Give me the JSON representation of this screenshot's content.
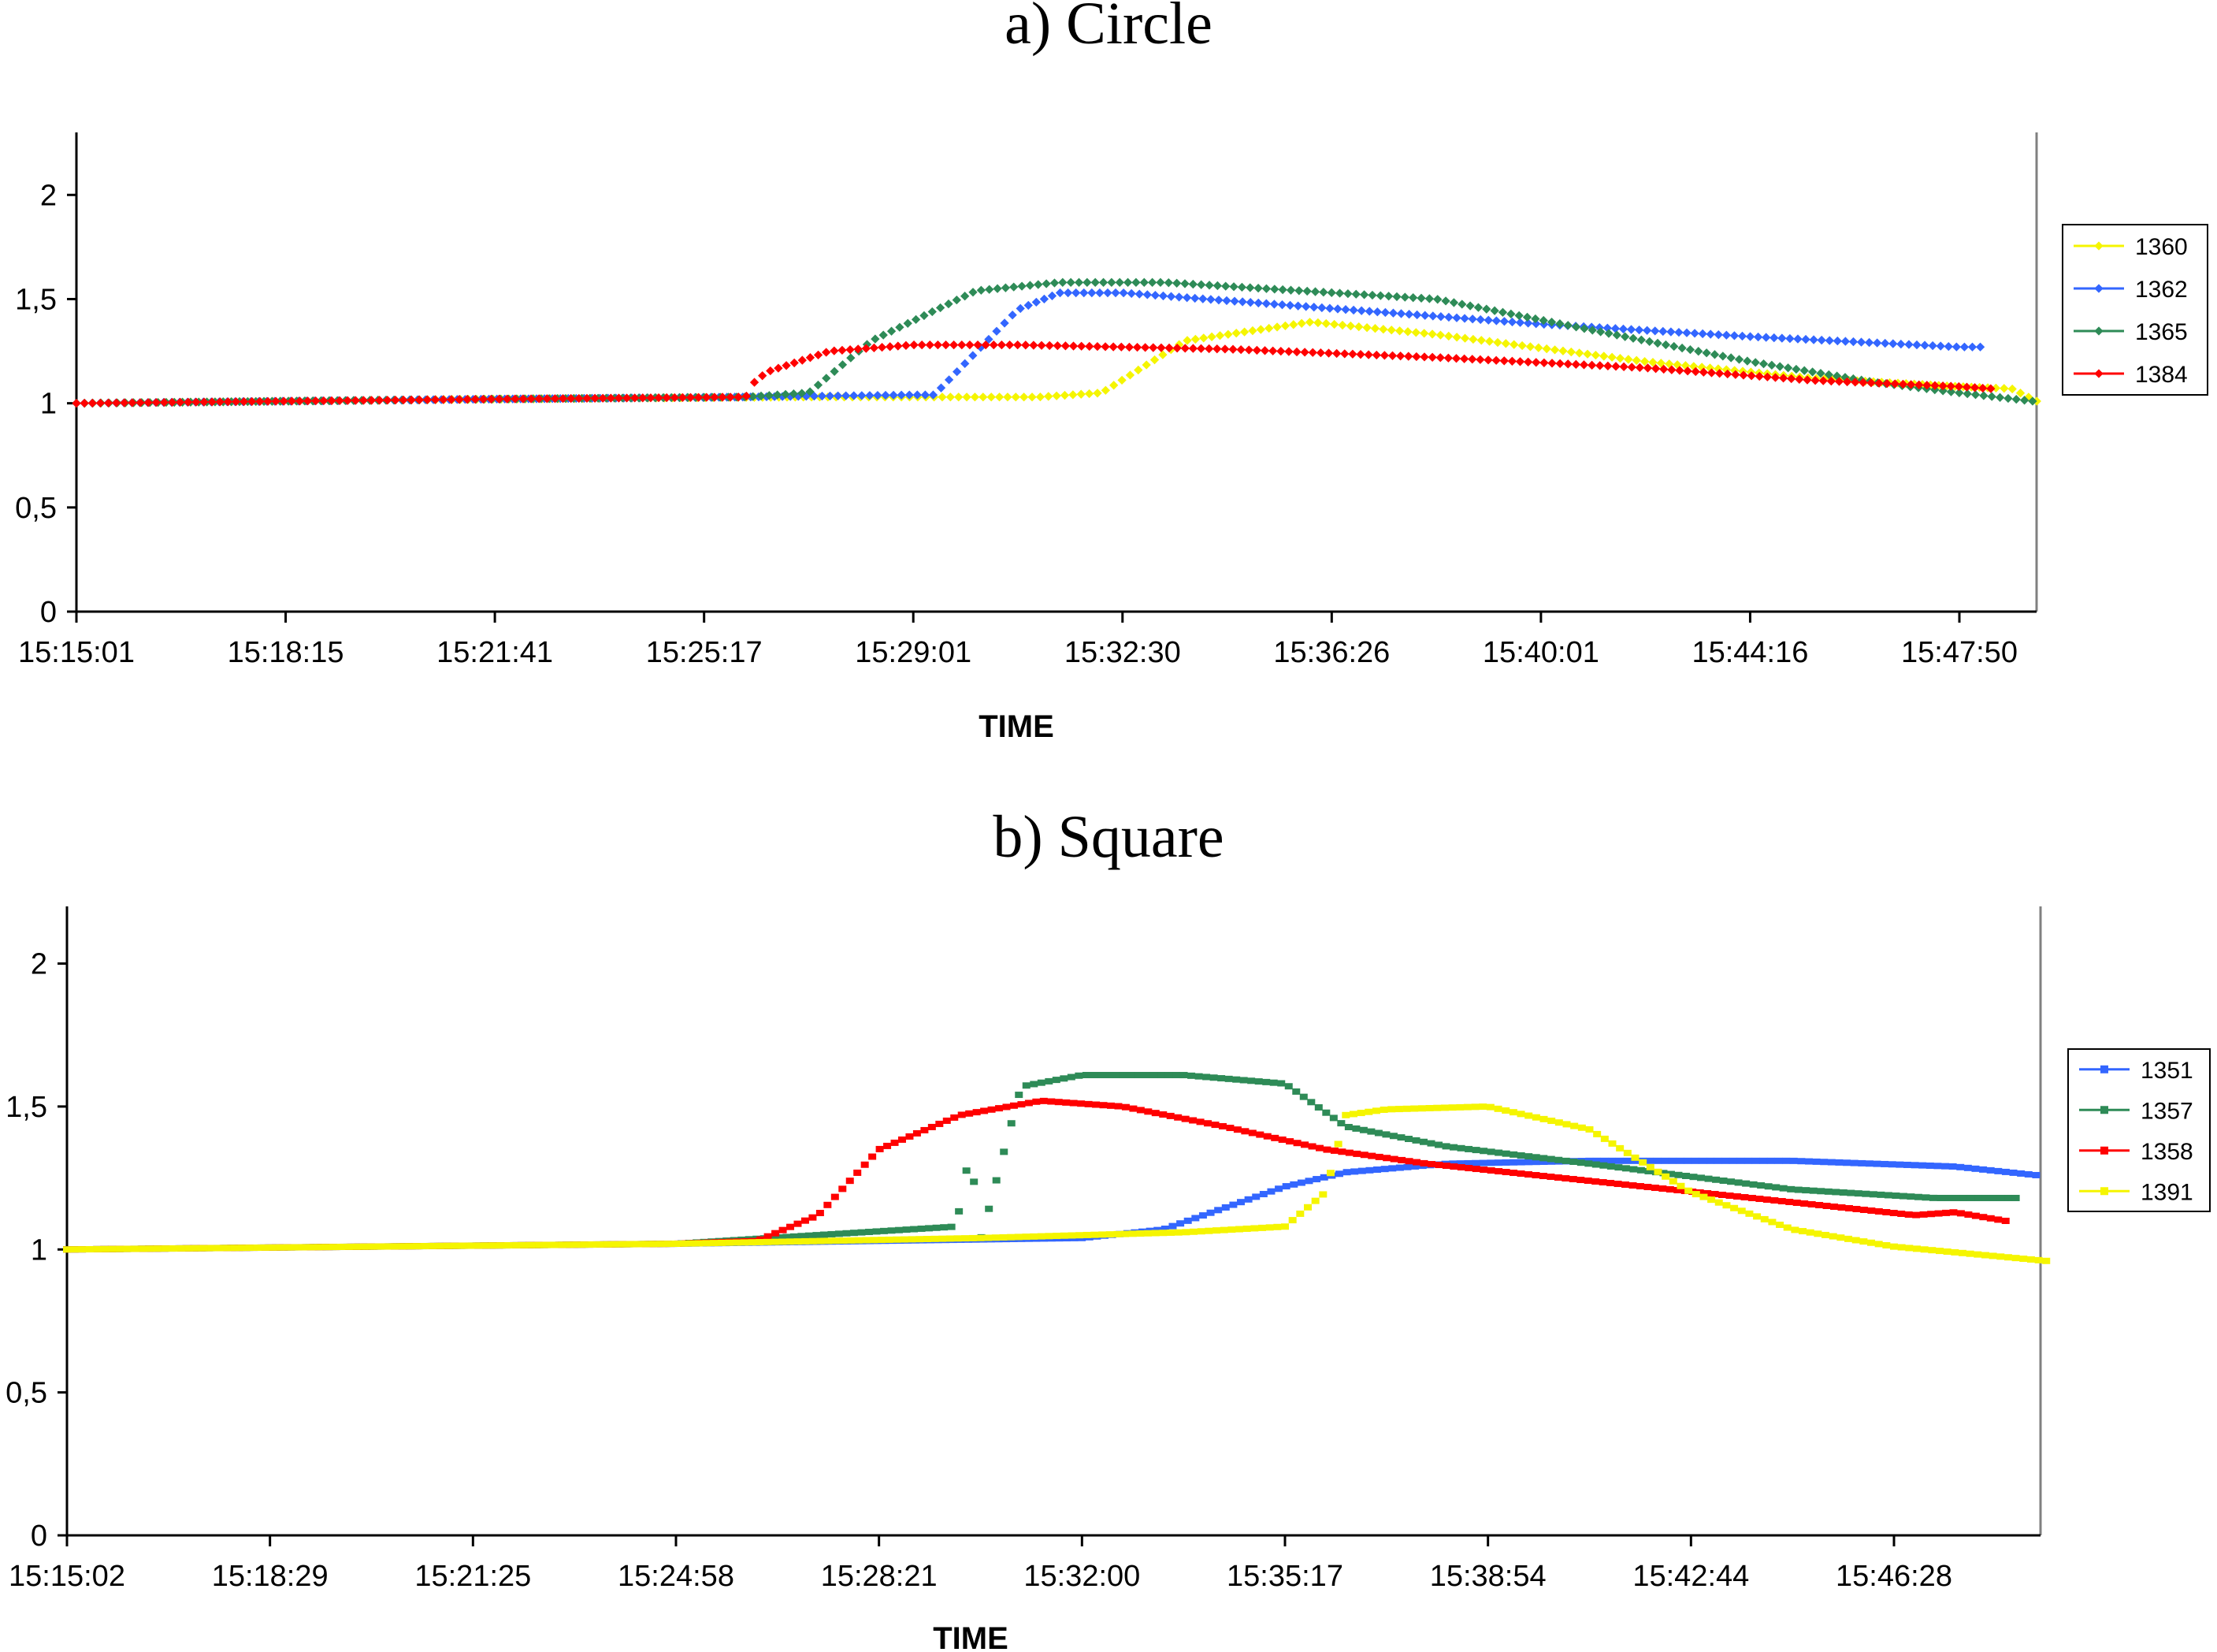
{
  "chart_data": [
    {
      "type": "scatter",
      "title": "a) Circle",
      "xlabel": "TIME",
      "ylabel": "",
      "ylim": [
        0,
        2.3
      ],
      "y_ticks": [
        "0",
        "0,5",
        "1",
        "1,5",
        "2"
      ],
      "y_tick_values": [
        0,
        0.5,
        1,
        1.5,
        2
      ],
      "x_ticks": [
        "15:15:01",
        "15:18:15",
        "15:21:41",
        "15:25:17",
        "15:29:01",
        "15:32:30",
        "15:36:26",
        "15:40:01",
        "15:44:16",
        "15:47:50"
      ],
      "xlim": [
        0,
        9.37
      ],
      "legend_position": "right",
      "series": [
        {
          "name": "1360",
          "color": "#f5f500",
          "x": [
            0,
            2,
            3.5,
            4.6,
            4.9,
            5.3,
            5.9,
            6.5,
            7.5,
            8.3,
            9.0,
            9.25,
            9.37
          ],
          "y": [
            1.0,
            1.02,
            1.03,
            1.03,
            1.05,
            1.3,
            1.39,
            1.33,
            1.2,
            1.12,
            1.08,
            1.07,
            1.01
          ]
        },
        {
          "name": "1362",
          "color": "#3366ff",
          "x": [
            0,
            2,
            3.2,
            4.0,
            4.1,
            4.5,
            4.7,
            5.0,
            5.8,
            7.0,
            8.0,
            9.0,
            9.1
          ],
          "y": [
            1.0,
            1.02,
            1.03,
            1.04,
            1.04,
            1.45,
            1.53,
            1.53,
            1.47,
            1.38,
            1.32,
            1.27,
            1.27
          ]
        },
        {
          "name": "1365",
          "color": "#2e8b57",
          "x": [
            0,
            2,
            3.2,
            3.5,
            3.8,
            4.3,
            4.7,
            5.2,
            6.5,
            7.5,
            8.0,
            8.6,
            9.0,
            9.35
          ],
          "y": [
            1.0,
            1.02,
            1.03,
            1.05,
            1.3,
            1.54,
            1.58,
            1.58,
            1.5,
            1.3,
            1.2,
            1.1,
            1.05,
            1.01
          ]
        },
        {
          "name": "1384",
          "color": "#ff0000",
          "x": [
            0,
            2,
            3.2,
            3.24,
            3.3,
            3.6,
            4.0,
            4.5,
            5.5,
            6.5,
            7.5,
            8.3,
            9.0,
            9.15
          ],
          "y": [
            1.0,
            1.02,
            1.03,
            1.1,
            1.15,
            1.25,
            1.28,
            1.28,
            1.26,
            1.22,
            1.17,
            1.11,
            1.08,
            1.07
          ]
        }
      ]
    },
    {
      "type": "scatter",
      "title": "b) Square",
      "xlabel": "TIME",
      "ylabel": "",
      "ylim": [
        0,
        2.2
      ],
      "y_ticks": [
        "0",
        "0,5",
        "1",
        "1,5",
        "2"
      ],
      "y_tick_values": [
        0,
        0.5,
        1,
        1.5,
        2
      ],
      "x_ticks": [
        "15:15:02",
        "15:18:29",
        "15:21:25",
        "15:24:58",
        "15:28:21",
        "15:32:00",
        "15:35:17",
        "15:38:54",
        "15:42:44",
        "15:46:28"
      ],
      "xlim": [
        0,
        9.75
      ],
      "legend_position": "right",
      "series": [
        {
          "name": "1351",
          "color": "#3366ff",
          "x": [
            0,
            3,
            5.0,
            5.4,
            6.0,
            6.3,
            6.8,
            7.5,
            8.5,
            9.3,
            9.7
          ],
          "y": [
            1.0,
            1.02,
            1.04,
            1.07,
            1.22,
            1.27,
            1.3,
            1.31,
            1.31,
            1.29,
            1.26
          ]
        },
        {
          "name": "1357",
          "color": "#2e8b57",
          "x": [
            0,
            3,
            4.5,
            4.38,
            4.45,
            4.7,
            5.0,
            5.5,
            6.0,
            6.3,
            6.8,
            7.5,
            8.5,
            9.2,
            9.6
          ],
          "y": [
            1.0,
            1.02,
            1.03,
            1.08,
            1.35,
            1.57,
            1.61,
            1.61,
            1.58,
            1.43,
            1.36,
            1.3,
            1.21,
            1.18,
            1.18
          ]
        },
        {
          "name": "1358",
          "color": "#ff0000",
          "x": [
            0,
            3,
            3.4,
            3.7,
            4.0,
            4.4,
            4.8,
            5.2,
            5.7,
            6.2,
            6.7,
            9.1,
            9.3,
            9.55
          ],
          "y": [
            1.0,
            1.02,
            1.03,
            1.12,
            1.35,
            1.47,
            1.52,
            1.5,
            1.43,
            1.35,
            1.3,
            1.12,
            1.13,
            1.1
          ]
        },
        {
          "name": "1391",
          "color": "#f5f500",
          "x": [
            0,
            3,
            4.5,
            5.5,
            6.0,
            6.2,
            6.3,
            6.5,
            7.0,
            7.5,
            8.0,
            8.5,
            9.0,
            9.75
          ],
          "y": [
            1.0,
            1.02,
            1.04,
            1.06,
            1.08,
            1.2,
            1.47,
            1.49,
            1.5,
            1.42,
            1.2,
            1.07,
            1.01,
            0.96
          ]
        }
      ]
    }
  ]
}
